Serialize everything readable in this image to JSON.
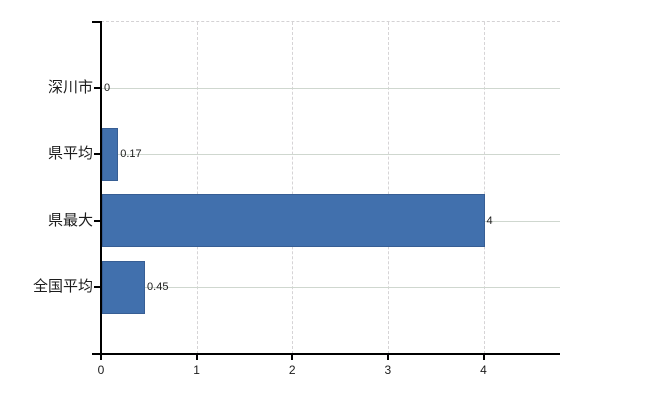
{
  "chart_data": {
    "type": "bar",
    "orientation": "horizontal",
    "title": "",
    "categories": [
      "深川市",
      "県平均",
      "県最大",
      "全国平均"
    ],
    "values": [
      0,
      0.17,
      4,
      0.45
    ],
    "value_labels": [
      "0",
      "0.17",
      "4",
      "0.45"
    ],
    "xlim": [
      0,
      4.8
    ],
    "xticks": [
      0,
      1,
      2,
      3,
      4
    ],
    "xtick_labels": [
      "0",
      "1",
      "2",
      "3",
      "4"
    ],
    "grid": {
      "vertical": "dashed",
      "horizontal": "solid"
    },
    "legend_position": "none"
  },
  "colors": {
    "bar": "#4170ad",
    "bar_border": "#375e94",
    "axis": "#000000",
    "grid_horizontal": "#cfd7cf",
    "grid_vertical": "#d6d4d6",
    "top_spine": "#d4d2d4",
    "text": "#1c1c1c",
    "background": "#ffffff"
  }
}
